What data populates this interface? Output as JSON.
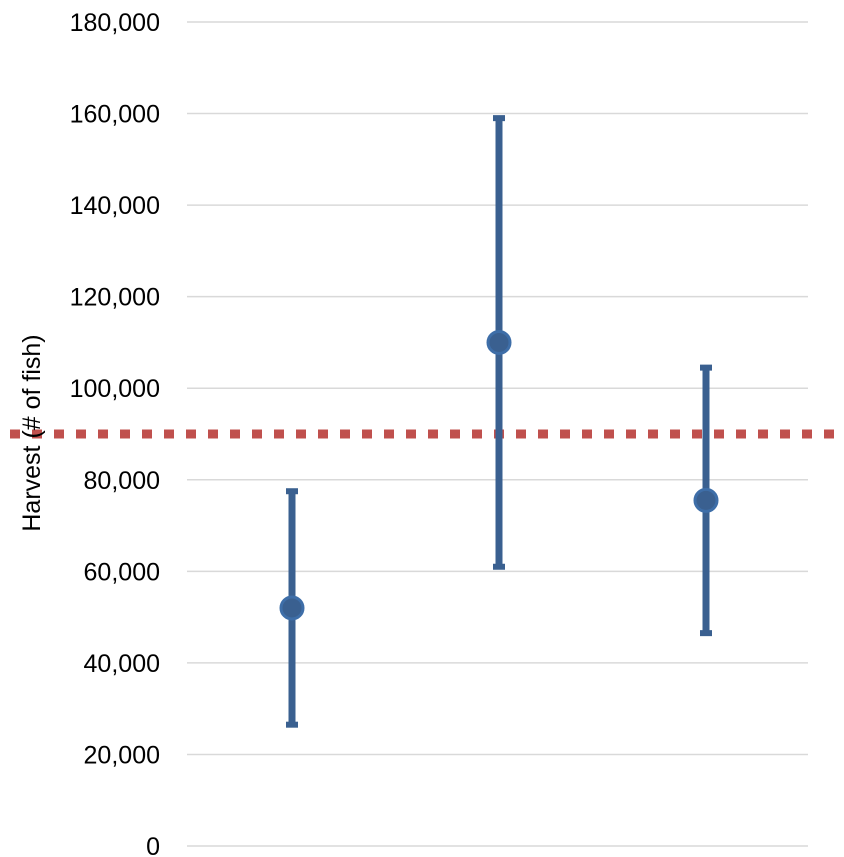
{
  "chart_data": {
    "type": "scatter",
    "title": "",
    "xlabel": "",
    "ylabel": "Harvest (# of fish)",
    "ylim": [
      0,
      180000
    ],
    "yticks": [
      0,
      20000,
      40000,
      60000,
      80000,
      100000,
      120000,
      140000,
      160000,
      180000
    ],
    "ytick_labels": [
      "0",
      "20,000",
      "40,000",
      "60,000",
      "80,000",
      "100,000",
      "120,000",
      "140,000",
      "160,000",
      "180,000"
    ],
    "grid": true,
    "legend": "none",
    "x": [
      1,
      2,
      3
    ],
    "series": [
      {
        "values": [
          52000,
          110000,
          75500
        ],
        "error_low": [
          26500,
          61000,
          46500
        ],
        "error_high": [
          77500,
          159000,
          104500
        ],
        "color": "#3a6090",
        "marker_color": "#3e6ea8"
      }
    ],
    "reference_line": {
      "value": 90000,
      "style": "dotted",
      "color": "#c0504d"
    }
  }
}
